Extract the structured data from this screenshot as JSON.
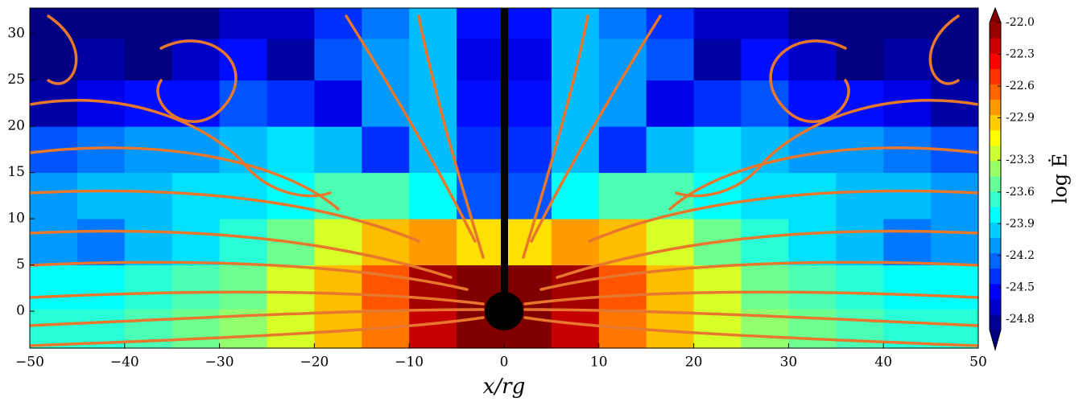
{
  "chart_data": {
    "type": "contour",
    "xlabel": "x/rg",
    "colorbar_label": "log Ė",
    "xlim": [
      -50,
      50
    ],
    "ylim": [
      -4,
      32.8
    ],
    "xticks": [
      {
        "value": -50,
        "label": "−50"
      },
      {
        "value": -40,
        "label": "−40"
      },
      {
        "value": -30,
        "label": "−30"
      },
      {
        "value": -20,
        "label": "−20"
      },
      {
        "value": -10,
        "label": "−10"
      },
      0,
      10,
      20,
      30,
      40,
      50
    ],
    "yticks": [
      0,
      5,
      10,
      15,
      20,
      25,
      30
    ],
    "clim": [
      -24.9,
      -22.0
    ],
    "cticks": [
      {
        "value": -22.0,
        "label": "-22.0"
      },
      -22.3,
      -22.6,
      -22.9,
      -23.3,
      -23.6,
      -23.9,
      -24.2,
      -24.5,
      -24.8
    ],
    "x": [
      -47.5,
      -42.5,
      -37.5,
      -32.5,
      -27.5,
      -22.5,
      -17.5,
      -12.5,
      -7.5,
      -2.5,
      2.5,
      7.5,
      12.5,
      17.5,
      22.5,
      27.5,
      32.5,
      37.5,
      42.5,
      47.5
    ],
    "y": [
      -2,
      2.5,
      7.5,
      12.5,
      17.5,
      22.5,
      27.5,
      31.5
    ],
    "z": [
      [
        -23.7,
        -23.7,
        -23.6,
        -23.5,
        -23.4,
        -23.2,
        -22.9,
        -22.7,
        -22.2,
        -22.0,
        -22.0,
        -22.2,
        -22.7,
        -22.9,
        -23.2,
        -23.4,
        -23.5,
        -23.6,
        -23.7,
        -23.7
      ],
      [
        -23.8,
        -23.8,
        -23.7,
        -23.6,
        -23.5,
        -23.2,
        -22.9,
        -22.6,
        -22.1,
        -22.0,
        -22.0,
        -22.1,
        -22.6,
        -22.9,
        -23.2,
        -23.5,
        -23.6,
        -23.7,
        -23.8,
        -23.8
      ],
      [
        -24.1,
        -24.2,
        -24.0,
        -23.9,
        -23.7,
        -23.5,
        -23.2,
        -22.9,
        -22.8,
        -23.0,
        -23.0,
        -22.8,
        -22.9,
        -23.2,
        -23.5,
        -23.7,
        -23.9,
        -24.0,
        -24.2,
        -24.1
      ],
      [
        -24.1,
        -24.0,
        -24.0,
        -23.9,
        -23.9,
        -23.8,
        -23.6,
        -23.6,
        -23.8,
        -24.3,
        -24.3,
        -23.8,
        -23.6,
        -23.6,
        -23.8,
        -23.9,
        -23.9,
        -24.0,
        -24.0,
        -24.1
      ],
      [
        -24.3,
        -24.2,
        -24.1,
        -24.1,
        -24.0,
        -23.9,
        -24.0,
        -24.4,
        -24.0,
        -24.4,
        -24.4,
        -24.0,
        -24.4,
        -24.0,
        -23.9,
        -24.0,
        -24.1,
        -24.1,
        -24.2,
        -24.3
      ],
      [
        -24.8,
        -24.6,
        -24.5,
        -24.5,
        -24.3,
        -24.4,
        -24.6,
        -24.1,
        -24.0,
        -24.5,
        -24.5,
        -24.0,
        -24.1,
        -24.6,
        -24.4,
        -24.3,
        -24.5,
        -24.5,
        -24.6,
        -24.8
      ],
      [
        -24.9,
        -24.8,
        -24.9,
        -24.7,
        -24.5,
        -24.8,
        -24.3,
        -24.1,
        -24.0,
        -24.6,
        -24.6,
        -24.0,
        -24.1,
        -24.3,
        -24.8,
        -24.5,
        -24.7,
        -24.9,
        -24.8,
        -24.9
      ],
      [
        -24.9,
        -24.9,
        -24.9,
        -24.9,
        -24.7,
        -24.7,
        -24.4,
        -24.2,
        -24.0,
        -24.5,
        -24.5,
        -24.0,
        -24.2,
        -24.4,
        -24.7,
        -24.7,
        -24.9,
        -24.9,
        -24.9,
        -24.9
      ]
    ]
  }
}
